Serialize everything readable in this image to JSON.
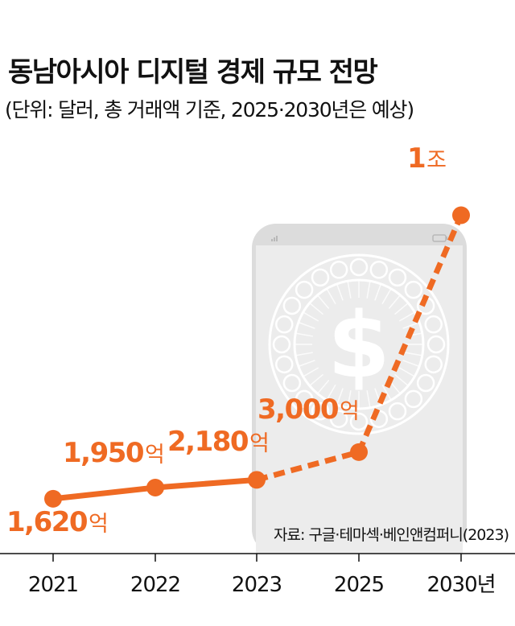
{
  "title": "동남아시아 디지털 경제 규모 전망",
  "subtitle": "(단위: 달러, 총 거래액 기준, 2025·2030년은 예상)",
  "source": "자료: 구글·테마섹·베인앤컴퍼니(2023)",
  "colors": {
    "accent": "#ef6a23",
    "axis": "#111111",
    "phone": "#dcdcdc",
    "phone_screen": "#eeeeee"
  },
  "icons": [
    "smartphone-illustration",
    "dollar-coin-icon"
  ],
  "chart_data": {
    "type": "line",
    "categories": [
      "2021",
      "2022",
      "2023",
      "2025",
      "2030년"
    ],
    "values": [
      162000000000,
      195000000000,
      218000000000,
      300000000000,
      1000000000000
    ],
    "data_labels": [
      {
        "number": "1,620",
        "unit": "억"
      },
      {
        "number": "1,950",
        "unit": "억"
      },
      {
        "number": "2,180",
        "unit": "억"
      },
      {
        "number": "3,000",
        "unit": "억"
      },
      {
        "number": "1",
        "unit": "조"
      }
    ],
    "projected_from_index": 2,
    "line_style": {
      "actual": "solid",
      "projected": "dashed"
    },
    "grid": false,
    "legend": "none"
  }
}
